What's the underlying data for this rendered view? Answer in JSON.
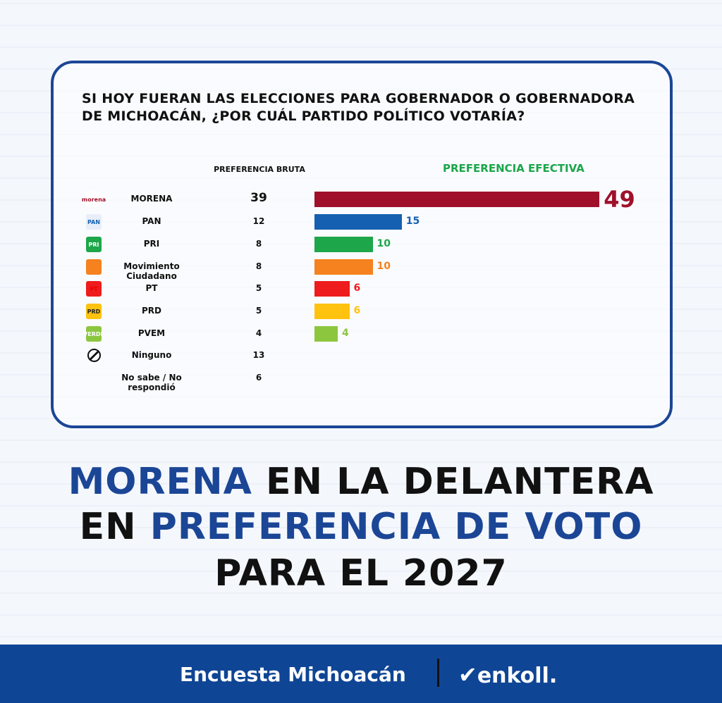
{
  "question": "SI HOY FUERAN LAS ELECCIONES PARA GOBERNADOR O GOBERNADORA DE MICHOACÁN, ¿POR CUÁL PARTIDO POLÍTICO VOTARÍA?",
  "chart_data": {
    "type": "bar",
    "orientation": "horizontal",
    "column_headers": {
      "bruta": "PREFERENCIA BRUTA",
      "efectiva": "PREFERENCIA EFECTIVA"
    },
    "categories": [
      "MORENA",
      "PAN",
      "PRI",
      "Movimiento Ciudadano",
      "PT",
      "PRD",
      "PVEM",
      "Ninguno",
      "No sabe / No respondió"
    ],
    "preferencia_bruta": [
      39,
      12,
      8,
      8,
      5,
      5,
      4,
      13,
      6
    ],
    "preferencia_efectiva": [
      49,
      15,
      10,
      10,
      6,
      6,
      4,
      null,
      null
    ],
    "colors": [
      "#a0102a",
      "#1560b0",
      "#1da64a",
      "#f5821f",
      "#ee1c1c",
      "#ffc20e",
      "#8cc63f"
    ],
    "logos": [
      "morena-logo",
      "pan-logo",
      "pri-logo",
      "mc-logo",
      "pt-logo",
      "prd-logo",
      "pvem-logo",
      "none-icon",
      ""
    ],
    "logo_text": [
      "morena",
      "PAN",
      "PRI",
      "",
      "PT",
      "PRD",
      "VERDE",
      "",
      ""
    ],
    "grid": false
  },
  "headline": {
    "l1a": "MORENA",
    "l1b": " EN LA DELANTERA",
    "l2a": "EN ",
    "l2b": "PREFERENCIA DE VOTO",
    "l3": "PARA EL 2027"
  },
  "footer": {
    "left": "Encuesta Michoacán",
    "brand": "enkoll."
  }
}
